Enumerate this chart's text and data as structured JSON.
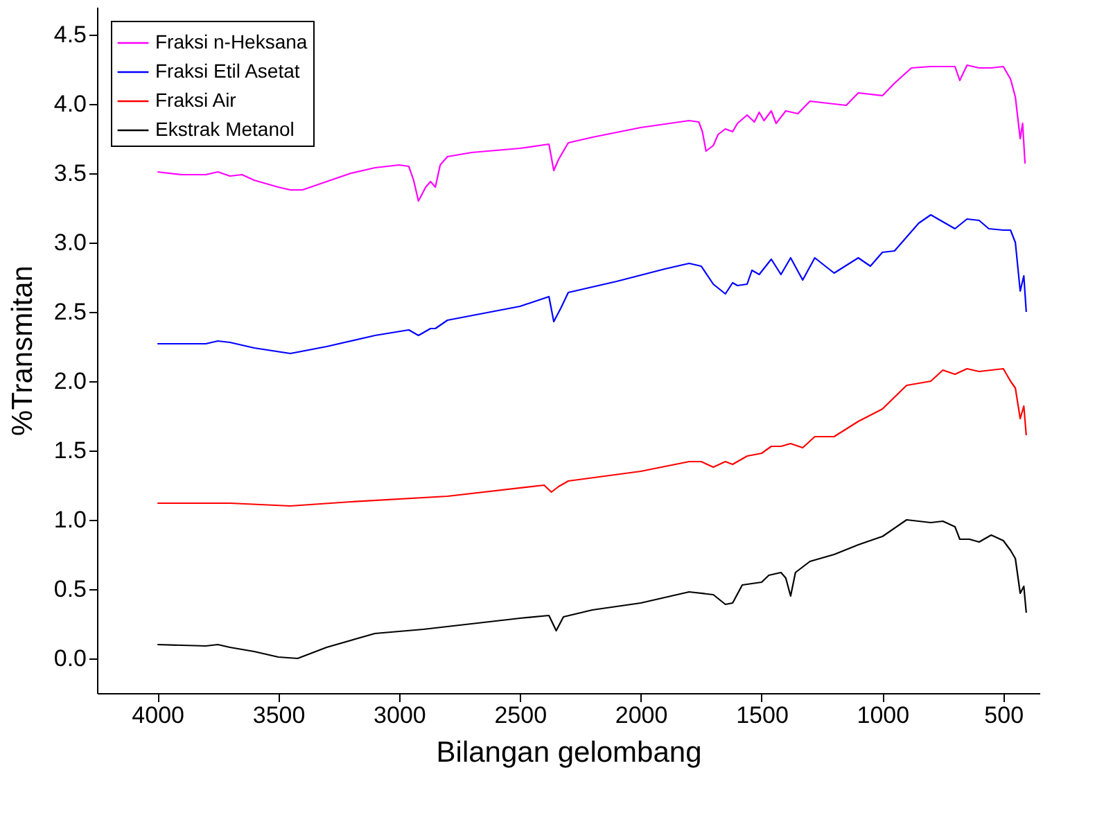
{
  "chart_data": {
    "type": "line",
    "xlabel": "Bilangan gelombang",
    "ylabel": "%Transmitan",
    "xlim": [
      4250,
      350
    ],
    "xticks": [
      4000,
      3500,
      3000,
      2500,
      2000,
      1500,
      1000,
      500
    ],
    "ylim": [
      -0.25,
      4.7
    ],
    "yticks": [
      {
        "value": 0,
        "label": "0.0"
      },
      0.5,
      {
        "value": 1,
        "label": "1.0"
      },
      1.5,
      {
        "value": 2,
        "label": "2.0"
      },
      2.5,
      {
        "value": 3,
        "label": "3.0"
      },
      3.5,
      {
        "value": 4,
        "label": "4.0"
      },
      4.5
    ],
    "legend": "top left",
    "grid": false,
    "marker": "none",
    "line_style": "solid",
    "series": [
      {
        "name": "Fraksi n-Heksana",
        "color": "#ff00ff",
        "x": [
          4000,
          3900,
          3800,
          3750,
          3700,
          3650,
          3600,
          3500,
          3450,
          3400,
          3300,
          3200,
          3100,
          3000,
          2960,
          2940,
          2920,
          2890,
          2870,
          2850,
          2830,
          2800,
          2700,
          2500,
          2380,
          2360,
          2340,
          2300,
          2200,
          2000,
          1800,
          1760,
          1745,
          1730,
          1700,
          1680,
          1650,
          1620,
          1600,
          1560,
          1530,
          1510,
          1490,
          1460,
          1440,
          1400,
          1350,
          1300,
          1200,
          1150,
          1100,
          1000,
          950,
          880,
          800,
          700,
          680,
          650,
          600,
          550,
          500,
          470,
          450,
          430,
          420,
          410
        ],
        "values": [
          3.51,
          3.49,
          3.49,
          3.51,
          3.48,
          3.49,
          3.45,
          3.4,
          3.38,
          3.38,
          3.44,
          3.5,
          3.54,
          3.56,
          3.55,
          3.45,
          3.3,
          3.4,
          3.44,
          3.4,
          3.56,
          3.62,
          3.65,
          3.68,
          3.71,
          3.52,
          3.6,
          3.72,
          3.76,
          3.83,
          3.88,
          3.87,
          3.8,
          3.66,
          3.7,
          3.78,
          3.82,
          3.8,
          3.86,
          3.92,
          3.87,
          3.94,
          3.88,
          3.95,
          3.86,
          3.95,
          3.93,
          4.02,
          4.0,
          3.99,
          4.08,
          4.06,
          4.15,
          4.26,
          4.27,
          4.27,
          4.17,
          4.28,
          4.26,
          4.26,
          4.27,
          4.18,
          4.05,
          3.75,
          3.86,
          3.57
        ]
      },
      {
        "name": "Fraksi Etil Asetat",
        "color": "#0000ff",
        "x": [
          4000,
          3800,
          3750,
          3700,
          3600,
          3450,
          3300,
          3100,
          2960,
          2920,
          2870,
          2850,
          2800,
          2500,
          2380,
          2360,
          2330,
          2300,
          2100,
          1900,
          1800,
          1750,
          1700,
          1650,
          1620,
          1600,
          1560,
          1540,
          1510,
          1460,
          1420,
          1380,
          1330,
          1280,
          1200,
          1100,
          1050,
          1000,
          950,
          880,
          850,
          800,
          740,
          700,
          650,
          600,
          560,
          500,
          470,
          450,
          430,
          415,
          405
        ],
        "values": [
          2.27,
          2.27,
          2.29,
          2.28,
          2.24,
          2.2,
          2.25,
          2.33,
          2.37,
          2.33,
          2.38,
          2.38,
          2.44,
          2.54,
          2.61,
          2.43,
          2.53,
          2.64,
          2.72,
          2.81,
          2.85,
          2.83,
          2.7,
          2.63,
          2.71,
          2.69,
          2.7,
          2.8,
          2.77,
          2.88,
          2.77,
          2.89,
          2.73,
          2.89,
          2.78,
          2.89,
          2.83,
          2.93,
          2.94,
          3.08,
          3.14,
          3.2,
          3.14,
          3.1,
          3.17,
          3.16,
          3.1,
          3.09,
          3.09,
          3.0,
          2.65,
          2.76,
          2.5
        ]
      },
      {
        "name": "Fraksi Air",
        "color": "#ff0000",
        "x": [
          4000,
          3700,
          3450,
          3200,
          2800,
          2400,
          2370,
          2340,
          2300,
          2000,
          1800,
          1750,
          1700,
          1650,
          1620,
          1560,
          1500,
          1460,
          1420,
          1380,
          1330,
          1280,
          1200,
          1100,
          1000,
          900,
          800,
          750,
          700,
          650,
          600,
          500,
          470,
          450,
          430,
          415,
          405
        ],
        "values": [
          1.12,
          1.12,
          1.1,
          1.13,
          1.17,
          1.25,
          1.2,
          1.24,
          1.28,
          1.35,
          1.42,
          1.42,
          1.38,
          1.42,
          1.4,
          1.46,
          1.48,
          1.53,
          1.53,
          1.55,
          1.52,
          1.6,
          1.6,
          1.71,
          1.8,
          1.97,
          2.0,
          2.08,
          2.05,
          2.09,
          2.07,
          2.09,
          2.0,
          1.95,
          1.73,
          1.82,
          1.61
        ]
      },
      {
        "name": "Ekstrak Metanol",
        "color": "#000000",
        "x": [
          4000,
          3800,
          3750,
          3700,
          3600,
          3500,
          3420,
          3300,
          3100,
          2900,
          2700,
          2500,
          2380,
          2350,
          2320,
          2200,
          2000,
          1800,
          1700,
          1650,
          1620,
          1580,
          1500,
          1470,
          1420,
          1400,
          1380,
          1360,
          1300,
          1200,
          1100,
          1000,
          900,
          800,
          750,
          700,
          680,
          640,
          600,
          550,
          500,
          470,
          450,
          430,
          415,
          405
        ],
        "values": [
          0.1,
          0.09,
          0.1,
          0.08,
          0.05,
          0.01,
          0.0,
          0.08,
          0.18,
          0.21,
          0.25,
          0.29,
          0.31,
          0.2,
          0.3,
          0.35,
          0.4,
          0.48,
          0.46,
          0.39,
          0.4,
          0.53,
          0.55,
          0.6,
          0.62,
          0.58,
          0.45,
          0.62,
          0.7,
          0.75,
          0.82,
          0.88,
          1.0,
          0.98,
          0.99,
          0.95,
          0.86,
          0.86,
          0.84,
          0.89,
          0.85,
          0.78,
          0.72,
          0.47,
          0.52,
          0.33
        ]
      }
    ]
  }
}
